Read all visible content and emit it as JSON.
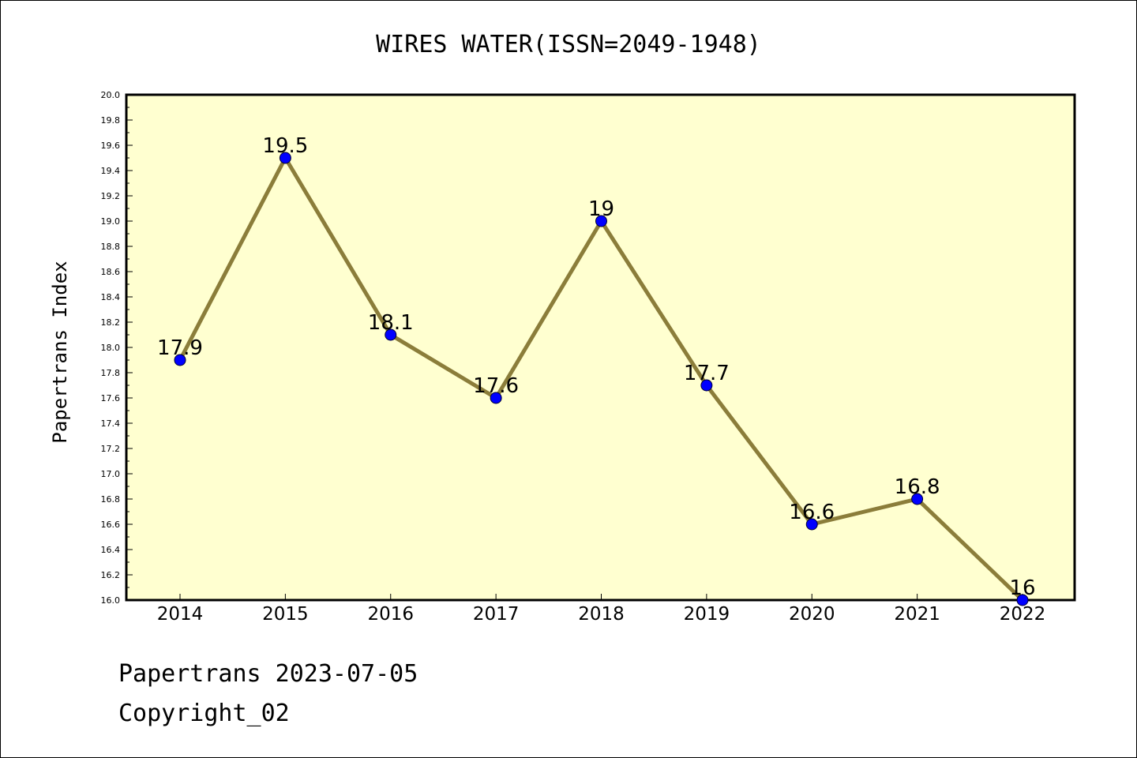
{
  "chart_data": {
    "type": "line",
    "title": "WIRES WATER(ISSN=2049-1948)",
    "xlabel": "",
    "ylabel": "Papertrans Index",
    "categories": [
      "2014",
      "2015",
      "2016",
      "2017",
      "2018",
      "2019",
      "2020",
      "2021",
      "2022"
    ],
    "values": [
      17.9,
      19.5,
      18.1,
      17.6,
      19.0,
      17.7,
      16.6,
      16.8,
      16.0
    ],
    "data_labels": [
      "17.9",
      "19.5",
      "18.1",
      "17.6",
      "19",
      "17.7",
      "16.6",
      "16.8",
      "16"
    ],
    "ylim": [
      16.0,
      20.0
    ],
    "y_ticks": [
      "16.0",
      "16.2",
      "16.4",
      "16.6",
      "16.8",
      "17.0",
      "17.2",
      "17.4",
      "17.6",
      "17.8",
      "18.0",
      "18.2",
      "18.4",
      "18.6",
      "18.8",
      "19.0",
      "19.2",
      "19.4",
      "19.6",
      "19.8",
      "20.0"
    ],
    "grid": false,
    "legend": "none",
    "colors": {
      "plot_background": "#ffffd0",
      "line": "#8b7d3a",
      "marker": "#0000ff"
    }
  },
  "footer": {
    "line1": "Papertrans 2023-07-05",
    "line2": "Copyright_02"
  }
}
